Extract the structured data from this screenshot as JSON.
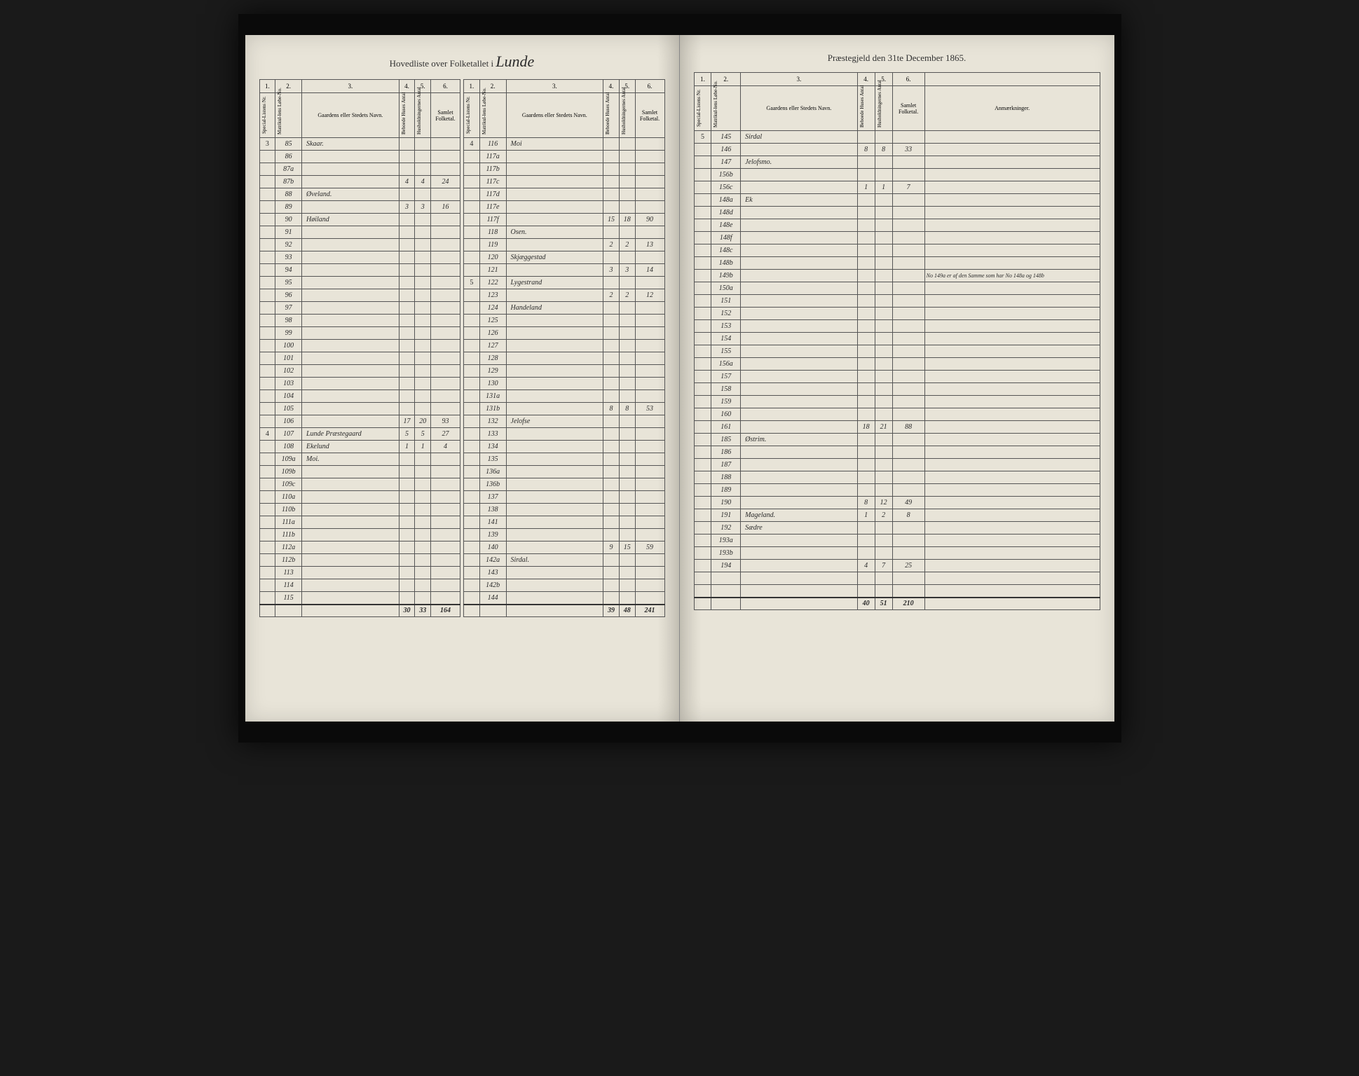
{
  "header": {
    "left_title": "Hovedliste over Folketallet i",
    "parish_name": "Lunde",
    "right_title": "Præstegjeld den 31te December 1865."
  },
  "column_headers": {
    "nums": [
      "1.",
      "2.",
      "3.",
      "4.",
      "5.",
      "6."
    ],
    "labels": [
      "Special-Listens Nr.",
      "Matrikul-lens Løbe-No.",
      "Gaardens eller Stedets Navn.",
      "Beboede Huses Antal",
      "Husholdningernes Antal",
      "Samlet Folketal."
    ],
    "remarks": "Anmærkninger."
  },
  "left_page": {
    "table1": {
      "rows": [
        {
          "c1": "3",
          "c2": "85",
          "c3": "Skaar.",
          "c4": "",
          "c5": "",
          "c6": ""
        },
        {
          "c1": "",
          "c2": "86",
          "c3": "",
          "c4": "",
          "c5": "",
          "c6": ""
        },
        {
          "c1": "",
          "c2": "87a",
          "c3": "",
          "c4": "",
          "c5": "",
          "c6": ""
        },
        {
          "c1": "",
          "c2": "87b",
          "c3": "",
          "c4": "4",
          "c5": "4",
          "c6": "24"
        },
        {
          "c1": "",
          "c2": "88",
          "c3": "Øveland.",
          "c4": "",
          "c5": "",
          "c6": ""
        },
        {
          "c1": "",
          "c2": "89",
          "c3": "",
          "c4": "3",
          "c5": "3",
          "c6": "16"
        },
        {
          "c1": "",
          "c2": "90",
          "c3": "Høiland",
          "c4": "",
          "c5": "",
          "c6": ""
        },
        {
          "c1": "",
          "c2": "91",
          "c3": "",
          "c4": "",
          "c5": "",
          "c6": ""
        },
        {
          "c1": "",
          "c2": "92",
          "c3": "",
          "c4": "",
          "c5": "",
          "c6": ""
        },
        {
          "c1": "",
          "c2": "93",
          "c3": "",
          "c4": "",
          "c5": "",
          "c6": ""
        },
        {
          "c1": "",
          "c2": "94",
          "c3": "",
          "c4": "",
          "c5": "",
          "c6": ""
        },
        {
          "c1": "",
          "c2": "95",
          "c3": "",
          "c4": "",
          "c5": "",
          "c6": ""
        },
        {
          "c1": "",
          "c2": "96",
          "c3": "",
          "c4": "",
          "c5": "",
          "c6": ""
        },
        {
          "c1": "",
          "c2": "97",
          "c3": "",
          "c4": "",
          "c5": "",
          "c6": ""
        },
        {
          "c1": "",
          "c2": "98",
          "c3": "",
          "c4": "",
          "c5": "",
          "c6": ""
        },
        {
          "c1": "",
          "c2": "99",
          "c3": "",
          "c4": "",
          "c5": "",
          "c6": ""
        },
        {
          "c1": "",
          "c2": "100",
          "c3": "",
          "c4": "",
          "c5": "",
          "c6": ""
        },
        {
          "c1": "",
          "c2": "101",
          "c3": "",
          "c4": "",
          "c5": "",
          "c6": ""
        },
        {
          "c1": "",
          "c2": "102",
          "c3": "",
          "c4": "",
          "c5": "",
          "c6": ""
        },
        {
          "c1": "",
          "c2": "103",
          "c3": "",
          "c4": "",
          "c5": "",
          "c6": ""
        },
        {
          "c1": "",
          "c2": "104",
          "c3": "",
          "c4": "",
          "c5": "",
          "c6": ""
        },
        {
          "c1": "",
          "c2": "105",
          "c3": "",
          "c4": "",
          "c5": "",
          "c6": ""
        },
        {
          "c1": "",
          "c2": "106",
          "c3": "",
          "c4": "17",
          "c5": "20",
          "c6": "93"
        },
        {
          "c1": "4",
          "c2": "107",
          "c3": "Lunde Præstegaard",
          "c4": "5",
          "c5": "5",
          "c6": "27"
        },
        {
          "c1": "",
          "c2": "108",
          "c3": "Ekelund",
          "c4": "1",
          "c5": "1",
          "c6": "4"
        },
        {
          "c1": "",
          "c2": "109a",
          "c3": "Moi.",
          "c4": "",
          "c5": "",
          "c6": ""
        },
        {
          "c1": "",
          "c2": "109b",
          "c3": "",
          "c4": "",
          "c5": "",
          "c6": ""
        },
        {
          "c1": "",
          "c2": "109c",
          "c3": "",
          "c4": "",
          "c5": "",
          "c6": ""
        },
        {
          "c1": "",
          "c2": "110a",
          "c3": "",
          "c4": "",
          "c5": "",
          "c6": ""
        },
        {
          "c1": "",
          "c2": "110b",
          "c3": "",
          "c4": "",
          "c5": "",
          "c6": ""
        },
        {
          "c1": "",
          "c2": "111a",
          "c3": "",
          "c4": "",
          "c5": "",
          "c6": ""
        },
        {
          "c1": "",
          "c2": "111b",
          "c3": "",
          "c4": "",
          "c5": "",
          "c6": ""
        },
        {
          "c1": "",
          "c2": "112a",
          "c3": "",
          "c4": "",
          "c5": "",
          "c6": ""
        },
        {
          "c1": "",
          "c2": "112b",
          "c3": "",
          "c4": "",
          "c5": "",
          "c6": ""
        },
        {
          "c1": "",
          "c2": "113",
          "c3": "",
          "c4": "",
          "c5": "",
          "c6": ""
        },
        {
          "c1": "",
          "c2": "114",
          "c3": "",
          "c4": "",
          "c5": "",
          "c6": ""
        },
        {
          "c1": "",
          "c2": "115",
          "c3": "",
          "c4": "",
          "c5": "",
          "c6": ""
        }
      ],
      "total": {
        "c4": "30",
        "c5": "33",
        "c6": "164"
      }
    },
    "table2": {
      "rows": [
        {
          "c1": "4",
          "c2": "116",
          "c3": "Moi",
          "c4": "",
          "c5": "",
          "c6": ""
        },
        {
          "c1": "",
          "c2": "117a",
          "c3": "",
          "c4": "",
          "c5": "",
          "c6": ""
        },
        {
          "c1": "",
          "c2": "117b",
          "c3": "",
          "c4": "",
          "c5": "",
          "c6": ""
        },
        {
          "c1": "",
          "c2": "117c",
          "c3": "",
          "c4": "",
          "c5": "",
          "c6": ""
        },
        {
          "c1": "",
          "c2": "117d",
          "c3": "",
          "c4": "",
          "c5": "",
          "c6": ""
        },
        {
          "c1": "",
          "c2": "117e",
          "c3": "",
          "c4": "",
          "c5": "",
          "c6": ""
        },
        {
          "c1": "",
          "c2": "117f",
          "c3": "",
          "c4": "15",
          "c5": "18",
          "c6": "90"
        },
        {
          "c1": "",
          "c2": "118",
          "c3": "Osen.",
          "c4": "",
          "c5": "",
          "c6": ""
        },
        {
          "c1": "",
          "c2": "119",
          "c3": "",
          "c4": "2",
          "c5": "2",
          "c6": "13"
        },
        {
          "c1": "",
          "c2": "120",
          "c3": "Skjæggestad",
          "c4": "",
          "c5": "",
          "c6": ""
        },
        {
          "c1": "",
          "c2": "121",
          "c3": "",
          "c4": "3",
          "c5": "3",
          "c6": "14"
        },
        {
          "c1": "5",
          "c2": "122",
          "c3": "Lygestrand",
          "c4": "",
          "c5": "",
          "c6": ""
        },
        {
          "c1": "",
          "c2": "123",
          "c3": "",
          "c4": "2",
          "c5": "2",
          "c6": "12"
        },
        {
          "c1": "",
          "c2": "124",
          "c3": "Handeland",
          "c4": "",
          "c5": "",
          "c6": ""
        },
        {
          "c1": "",
          "c2": "125",
          "c3": "",
          "c4": "",
          "c5": "",
          "c6": ""
        },
        {
          "c1": "",
          "c2": "126",
          "c3": "",
          "c4": "",
          "c5": "",
          "c6": ""
        },
        {
          "c1": "",
          "c2": "127",
          "c3": "",
          "c4": "",
          "c5": "",
          "c6": ""
        },
        {
          "c1": "",
          "c2": "128",
          "c3": "",
          "c4": "",
          "c5": "",
          "c6": ""
        },
        {
          "c1": "",
          "c2": "129",
          "c3": "",
          "c4": "",
          "c5": "",
          "c6": ""
        },
        {
          "c1": "",
          "c2": "130",
          "c3": "",
          "c4": "",
          "c5": "",
          "c6": ""
        },
        {
          "c1": "",
          "c2": "131a",
          "c3": "",
          "c4": "",
          "c5": "",
          "c6": ""
        },
        {
          "c1": "",
          "c2": "131b",
          "c3": "",
          "c4": "8",
          "c5": "8",
          "c6": "53"
        },
        {
          "c1": "",
          "c2": "132",
          "c3": "Jelofse",
          "c4": "",
          "c5": "",
          "c6": ""
        },
        {
          "c1": "",
          "c2": "133",
          "c3": "",
          "c4": "",
          "c5": "",
          "c6": ""
        },
        {
          "c1": "",
          "c2": "134",
          "c3": "",
          "c4": "",
          "c5": "",
          "c6": ""
        },
        {
          "c1": "",
          "c2": "135",
          "c3": "",
          "c4": "",
          "c5": "",
          "c6": ""
        },
        {
          "c1": "",
          "c2": "136a",
          "c3": "",
          "c4": "",
          "c5": "",
          "c6": ""
        },
        {
          "c1": "",
          "c2": "136b",
          "c3": "",
          "c4": "",
          "c5": "",
          "c6": ""
        },
        {
          "c1": "",
          "c2": "137",
          "c3": "",
          "c4": "",
          "c5": "",
          "c6": ""
        },
        {
          "c1": "",
          "c2": "138",
          "c3": "",
          "c4": "",
          "c5": "",
          "c6": ""
        },
        {
          "c1": "",
          "c2": "141",
          "c3": "",
          "c4": "",
          "c5": "",
          "c6": ""
        },
        {
          "c1": "",
          "c2": "139",
          "c3": "",
          "c4": "",
          "c5": "",
          "c6": ""
        },
        {
          "c1": "",
          "c2": "140",
          "c3": "",
          "c4": "9",
          "c5": "15",
          "c6": "59"
        },
        {
          "c1": "",
          "c2": "142a",
          "c3": "Sirdal.",
          "c4": "",
          "c5": "",
          "c6": ""
        },
        {
          "c1": "",
          "c2": "143",
          "c3": "",
          "c4": "",
          "c5": "",
          "c6": ""
        },
        {
          "c1": "",
          "c2": "142b",
          "c3": "",
          "c4": "",
          "c5": "",
          "c6": ""
        },
        {
          "c1": "",
          "c2": "144",
          "c3": "",
          "c4": "",
          "c5": "",
          "c6": ""
        }
      ],
      "total": {
        "c4": "39",
        "c5": "48",
        "c6": "241"
      }
    }
  },
  "right_page": {
    "table": {
      "rows": [
        {
          "c1": "5",
          "c2": "145",
          "c3": "Sirdal",
          "c4": "",
          "c5": "",
          "c6": "",
          "r": ""
        },
        {
          "c1": "",
          "c2": "146",
          "c3": "",
          "c4": "8",
          "c5": "8",
          "c6": "33",
          "r": ""
        },
        {
          "c1": "",
          "c2": "147",
          "c3": "Jelofsmo.",
          "c4": "",
          "c5": "",
          "c6": "",
          "r": ""
        },
        {
          "c1": "",
          "c2": "156b",
          "c3": "",
          "c4": "",
          "c5": "",
          "c6": "",
          "r": ""
        },
        {
          "c1": "",
          "c2": "156c",
          "c3": "",
          "c4": "1",
          "c5": "1",
          "c6": "7",
          "r": ""
        },
        {
          "c1": "",
          "c2": "148a",
          "c3": "Ek",
          "c4": "",
          "c5": "",
          "c6": "",
          "r": ""
        },
        {
          "c1": "",
          "c2": "148d",
          "c3": "",
          "c4": "",
          "c5": "",
          "c6": "",
          "r": ""
        },
        {
          "c1": "",
          "c2": "148e",
          "c3": "",
          "c4": "",
          "c5": "",
          "c6": "",
          "r": ""
        },
        {
          "c1": "",
          "c2": "148f",
          "c3": "",
          "c4": "",
          "c5": "",
          "c6": "",
          "r": ""
        },
        {
          "c1": "",
          "c2": "148c",
          "c3": "",
          "c4": "",
          "c5": "",
          "c6": "",
          "r": ""
        },
        {
          "c1": "",
          "c2": "148b",
          "c3": "",
          "c4": "",
          "c5": "",
          "c6": "",
          "r": ""
        },
        {
          "c1": "",
          "c2": "149b",
          "c3": "",
          "c4": "",
          "c5": "",
          "c6": "",
          "r": "No 149a er af den Samme som har No 148a og 148b"
        },
        {
          "c1": "",
          "c2": "150a",
          "c3": "",
          "c4": "",
          "c5": "",
          "c6": "",
          "r": ""
        },
        {
          "c1": "",
          "c2": "151",
          "c3": "",
          "c4": "",
          "c5": "",
          "c6": "",
          "r": ""
        },
        {
          "c1": "",
          "c2": "152",
          "c3": "",
          "c4": "",
          "c5": "",
          "c6": "",
          "r": ""
        },
        {
          "c1": "",
          "c2": "153",
          "c3": "",
          "c4": "",
          "c5": "",
          "c6": "",
          "r": ""
        },
        {
          "c1": "",
          "c2": "154",
          "c3": "",
          "c4": "",
          "c5": "",
          "c6": "",
          "r": ""
        },
        {
          "c1": "",
          "c2": "155",
          "c3": "",
          "c4": "",
          "c5": "",
          "c6": "",
          "r": ""
        },
        {
          "c1": "",
          "c2": "156a",
          "c3": "",
          "c4": "",
          "c5": "",
          "c6": "",
          "r": ""
        },
        {
          "c1": "",
          "c2": "157",
          "c3": "",
          "c4": "",
          "c5": "",
          "c6": "",
          "r": ""
        },
        {
          "c1": "",
          "c2": "158",
          "c3": "",
          "c4": "",
          "c5": "",
          "c6": "",
          "r": ""
        },
        {
          "c1": "",
          "c2": "159",
          "c3": "",
          "c4": "",
          "c5": "",
          "c6": "",
          "r": ""
        },
        {
          "c1": "",
          "c2": "160",
          "c3": "",
          "c4": "",
          "c5": "",
          "c6": "",
          "r": ""
        },
        {
          "c1": "",
          "c2": "161",
          "c3": "",
          "c4": "18",
          "c5": "21",
          "c6": "88",
          "r": ""
        },
        {
          "c1": "",
          "c2": "185",
          "c3": "Østrim.",
          "c4": "",
          "c5": "",
          "c6": "",
          "r": ""
        },
        {
          "c1": "",
          "c2": "186",
          "c3": "",
          "c4": "",
          "c5": "",
          "c6": "",
          "r": ""
        },
        {
          "c1": "",
          "c2": "187",
          "c3": "",
          "c4": "",
          "c5": "",
          "c6": "",
          "r": ""
        },
        {
          "c1": "",
          "c2": "188",
          "c3": "",
          "c4": "",
          "c5": "",
          "c6": "",
          "r": ""
        },
        {
          "c1": "",
          "c2": "189",
          "c3": "",
          "c4": "",
          "c5": "",
          "c6": "",
          "r": ""
        },
        {
          "c1": "",
          "c2": "190",
          "c3": "",
          "c4": "8",
          "c5": "12",
          "c6": "49",
          "r": ""
        },
        {
          "c1": "",
          "c2": "191",
          "c3": "Mageland.",
          "c4": "1",
          "c5": "2",
          "c6": "8",
          "r": ""
        },
        {
          "c1": "",
          "c2": "192",
          "c3": "Sædre",
          "c4": "",
          "c5": "",
          "c6": "",
          "r": ""
        },
        {
          "c1": "",
          "c2": "193a",
          "c3": "",
          "c4": "",
          "c5": "",
          "c6": "",
          "r": ""
        },
        {
          "c1": "",
          "c2": "193b",
          "c3": "",
          "c4": "",
          "c5": "",
          "c6": "",
          "r": ""
        },
        {
          "c1": "",
          "c2": "194",
          "c3": "",
          "c4": "4",
          "c5": "7",
          "c6": "25",
          "r": ""
        },
        {
          "c1": "",
          "c2": "",
          "c3": "",
          "c4": "",
          "c5": "",
          "c6": "",
          "r": ""
        },
        {
          "c1": "",
          "c2": "",
          "c3": "",
          "c4": "",
          "c5": "",
          "c6": "",
          "r": ""
        }
      ],
      "total": {
        "c4": "40",
        "c5": "51",
        "c6": "210"
      }
    }
  }
}
